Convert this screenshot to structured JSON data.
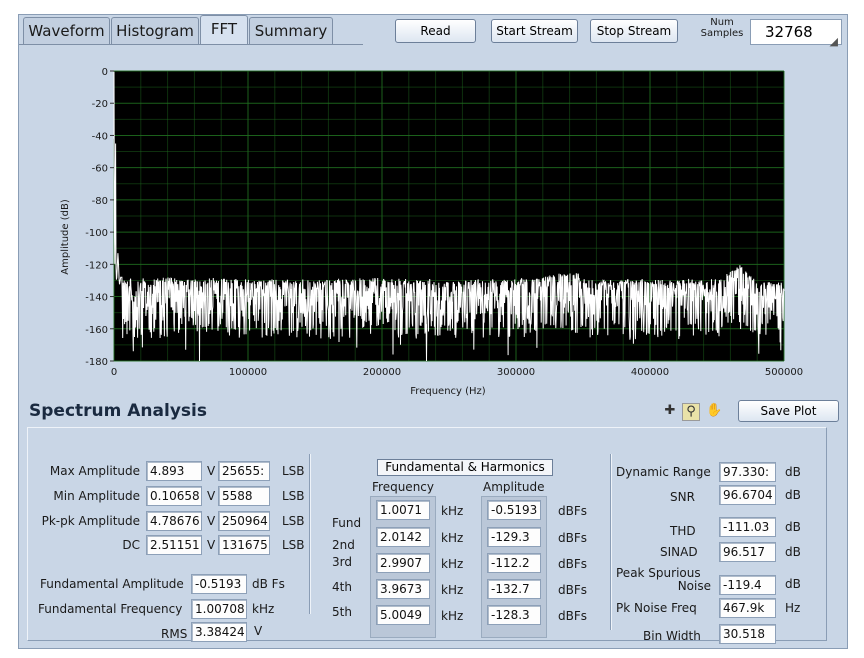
{
  "tabs": [
    "Waveform",
    "Histogram",
    "FFT",
    "Summary"
  ],
  "active_tab": "FFT",
  "buttons": {
    "read": "Read",
    "start_stream": "Start Stream",
    "stop_stream": "Stop Stream"
  },
  "num_samples": {
    "label_line1": "Num",
    "label_line2": "Samples",
    "value": "32768"
  },
  "chart_data": {
    "type": "line",
    "title": "",
    "xlabel": "Frequency (Hz)",
    "ylabel": "Amplitude (dB)",
    "xlim": [
      0,
      500000
    ],
    "ylim": [
      -180,
      0
    ],
    "x_ticks": [
      0,
      100000,
      200000,
      300000,
      400000,
      500000
    ],
    "y_ticks": [
      0,
      -20,
      -40,
      -60,
      -80,
      -100,
      -120,
      -140,
      -160,
      -180
    ],
    "grid": true,
    "background": "#000000",
    "grid_color": "#1f6b1f",
    "trace_color": "#ffffff",
    "series": [
      {
        "x": [
          0,
          400,
          800,
          1007,
          1500,
          2014,
          3000,
          4000,
          5000,
          50000,
          100000,
          150000,
          200000,
          250000,
          300000,
          345000,
          350000,
          400000,
          450000,
          467900,
          480000,
          500000
        ],
        "y": [
          -42,
          -115,
          -125,
          -0.5,
          -130,
          -129,
          -112,
          -133,
          -128,
          -128,
          -129,
          -129,
          -128,
          -129,
          -129,
          -124,
          -129,
          -129,
          -129,
          -119,
          -130,
          -131
        ]
      }
    ]
  },
  "spectrum_analysis": {
    "title": "Spectrum Analysis",
    "save_plot": "Save Plot",
    "tool_icons": [
      "crosshair-icon",
      "zoom-icon",
      "pan-hand-icon"
    ],
    "rows": [
      {
        "label": "Max Amplitude",
        "volts": "4.893",
        "v_unit": "V",
        "lsb": "25655:",
        "lsb_unit": "LSB"
      },
      {
        "label": "Min Amplitude",
        "volts": "0.10658",
        "v_unit": "V",
        "lsb": "5588",
        "lsb_unit": "LSB"
      },
      {
        "label": "Pk-pk Amplitude",
        "volts": "4.78676",
        "v_unit": "V",
        "lsb": "250964",
        "lsb_unit": "LSB"
      },
      {
        "label": "DC",
        "volts": "2.51151",
        "v_unit": "V",
        "lsb": "131675",
        "lsb_unit": "LSB"
      }
    ],
    "fund_amp": {
      "label": "Fundamental Amplitude",
      "value": "-0.5193",
      "unit": "dB Fs"
    },
    "fund_freq": {
      "label": "Fundamental Frequency",
      "value": "1.00708",
      "unit": "kHz"
    },
    "rms": {
      "label": "RMS",
      "value": "3.38424",
      "unit": "V"
    },
    "harmonics": {
      "title": "Fundamental & Harmonics",
      "freq_header": "Frequency",
      "amp_header": "Amplitude",
      "freq_unit": "kHz",
      "amp_unit": "dBFs",
      "rows": [
        {
          "name": "Fund",
          "freq": "1.0071",
          "amp": "-0.5193"
        },
        {
          "name": "2nd",
          "freq": "2.0142",
          "amp": "-129.3"
        },
        {
          "name": "3rd",
          "freq": "2.9907",
          "amp": "-112.2"
        },
        {
          "name": "4th",
          "freq": "3.9673",
          "amp": "-132.7"
        },
        {
          "name": "5th",
          "freq": "5.0049",
          "amp": "-128.3"
        }
      ]
    },
    "metrics": {
      "dynamic_range": {
        "label": "Dynamic Range",
        "value": "97.330:",
        "unit": "dB"
      },
      "snr": {
        "label": "SNR",
        "value": "96.6704",
        "unit": "dB"
      },
      "thd": {
        "label": "THD",
        "value": "-111.03",
        "unit": "dB"
      },
      "sinad": {
        "label": "SINAD",
        "value": "96.517",
        "unit": "dB"
      },
      "peak_spurious": {
        "label_line1": "Peak Spurious",
        "label_line2": "Noise",
        "value": "-119.4",
        "unit": "dB"
      },
      "pk_noise_freq": {
        "label": "Pk Noise Freq",
        "value": "467.9k",
        "unit": "Hz"
      },
      "bin_width": {
        "label": "Bin Width",
        "value": "30.518"
      }
    }
  }
}
